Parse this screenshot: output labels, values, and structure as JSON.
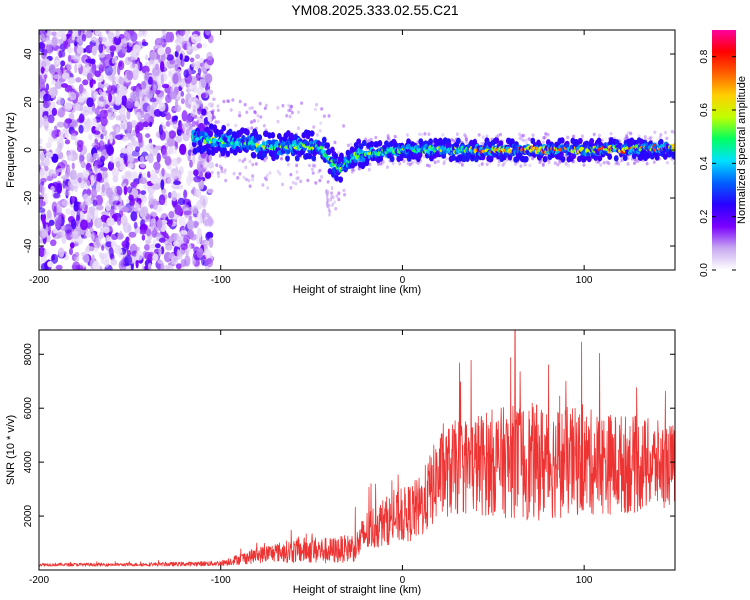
{
  "figure_title": "YM08.2025.333.02.55.C21",
  "chart_data": [
    {
      "type": "heatmap",
      "name": "spectrogram",
      "xlabel": "Height of straight line (km)",
      "ylabel": "Frequency (Hz)",
      "xlim": [
        -200,
        150
      ],
      "ylim": [
        -50,
        50
      ],
      "x_ticks": [
        -200,
        -100,
        0,
        100
      ],
      "x_tick_labels": [
        "-200",
        "-100",
        "0",
        "100"
      ],
      "y_ticks": [
        -40,
        -20,
        0,
        20,
        40
      ],
      "y_tick_labels": [
        "-40",
        "-20",
        "0",
        "20",
        "40"
      ],
      "grid": false,
      "description_of_data": {
        "noise_region_km": [
          -200,
          -115
        ],
        "signal_onset_km": -115,
        "signal_center_hz": [
          [
            -115,
            5
          ],
          [
            -100,
            4
          ],
          [
            -85,
            3
          ],
          [
            -70,
            1
          ],
          [
            -55,
            2
          ],
          [
            -45,
            1
          ],
          [
            -35,
            -8
          ],
          [
            -25,
            -2
          ],
          [
            0,
            0
          ],
          [
            50,
            0
          ],
          [
            100,
            0
          ],
          [
            150,
            1
          ]
        ],
        "signal_halfwidth_hz": 4
      },
      "colorbar": {
        "label": "Normalized spectral amplitude",
        "range": [
          0,
          0.9
        ],
        "ticks": [
          0.0,
          0.2,
          0.4,
          0.6,
          0.8
        ],
        "tick_labels": [
          "0.0",
          "0.2",
          "0.4",
          "0.6",
          "0.8"
        ],
        "colors": [
          "#ffffff",
          "#c8a8f0",
          "#7a00ff",
          "#2a00ff",
          "#0060ff",
          "#00e0ff",
          "#00ff60",
          "#c0ff00",
          "#ffd000",
          "#ff6000",
          "#ff0000",
          "#ff00a0"
        ]
      }
    },
    {
      "type": "line",
      "name": "snr",
      "xlabel": "Height of straight line (km)",
      "ylabel": "SNR (10 * v/v)",
      "xlim": [
        -200,
        150
      ],
      "ylim": [
        0,
        8900
      ],
      "x_ticks": [
        -200,
        -100,
        0,
        100
      ],
      "x_tick_labels": [
        "-200",
        "-100",
        "0",
        "100"
      ],
      "y_ticks": [
        2000,
        4000,
        6000,
        8000
      ],
      "y_tick_labels": [
        "2000",
        "4000",
        "6000",
        "8000"
      ],
      "grid": false,
      "color": "#ee3333",
      "envelope": {
        "x": [
          -200,
          -150,
          -120,
          -100,
          -90,
          -80,
          -70,
          -60,
          -50,
          -40,
          -30,
          -25,
          -20,
          -10,
          0,
          10,
          20,
          30,
          50,
          70,
          100,
          130,
          150
        ],
        "mean": [
          200,
          200,
          220,
          250,
          400,
          550,
          650,
          700,
          750,
          700,
          800,
          900,
          1400,
          1800,
          2000,
          2300,
          3500,
          3800,
          4000,
          4000,
          4000,
          3900,
          3900
        ],
        "spread": [
          60,
          60,
          80,
          100,
          200,
          300,
          350,
          450,
          500,
          500,
          500,
          600,
          800,
          900,
          1000,
          1200,
          1600,
          1800,
          2000,
          2200,
          2000,
          1800,
          1500
        ]
      },
      "peak": {
        "x": 62,
        "y": 8900
      }
    }
  ]
}
